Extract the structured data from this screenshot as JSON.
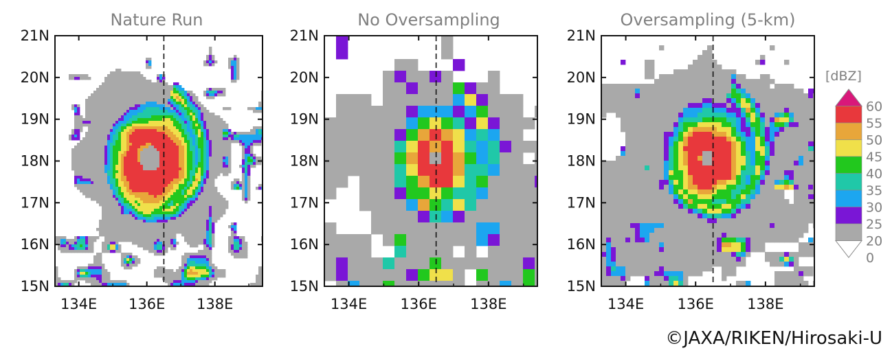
{
  "figure": {
    "credit": "©JAXA/RIKEN/Hirosaki-U"
  },
  "chart_data": [
    {
      "type": "heatmap",
      "title": "Nature Run",
      "x_ticks": [
        "134E",
        "136E",
        "138E"
      ],
      "y_ticks": [
        "21N",
        "20N",
        "19N",
        "18N",
        "17N",
        "16N",
        "15N"
      ],
      "xlim": [
        133.3,
        139.4
      ],
      "ylim": [
        15,
        21
      ],
      "reference_line_lon": 136.5,
      "resolution": "fine",
      "storm": {
        "center": [
          136.1,
          18.05
        ],
        "eye_radius_deg": 0.3,
        "max_dbz": 55
      }
    },
    {
      "type": "heatmap",
      "title": "No Oversampling",
      "x_ticks": [
        "134E",
        "136E",
        "138E"
      ],
      "y_ticks": [
        "21N",
        "20N",
        "19N",
        "18N",
        "17N",
        "16N",
        "15N"
      ],
      "xlim": [
        133.3,
        139.4
      ],
      "ylim": [
        15,
        21
      ],
      "reference_line_lon": 136.5,
      "resolution": "coarse",
      "storm": {
        "center": [
          136.5,
          18.1
        ],
        "eye_radius_deg": 0.15,
        "max_dbz": 55
      }
    },
    {
      "type": "heatmap",
      "title": "Oversampling (5-km)",
      "x_ticks": [
        "134E",
        "136E",
        "138E"
      ],
      "y_ticks": [
        "21N",
        "20N",
        "19N",
        "18N",
        "17N",
        "16N",
        "15N"
      ],
      "xlim": [
        133.3,
        139.4
      ],
      "ylim": [
        15,
        21
      ],
      "reference_line_lon": 136.5,
      "resolution": "medium",
      "storm": {
        "center": [
          136.35,
          18.1
        ],
        "eye_radius_deg": 0.18,
        "max_dbz": 55
      }
    }
  ],
  "colorbar": {
    "unit": "[dBZ]",
    "labels": [
      "60",
      "55",
      "50",
      "45",
      "40",
      "35",
      "30",
      "25",
      "20",
      "0"
    ],
    "colors": [
      "#d9187a",
      "#e8383c",
      "#e8a63a",
      "#f0e04a",
      "#22c81e",
      "#20c8a8",
      "#1ca6f0",
      "#7a16d6",
      "#a9a9a9"
    ]
  }
}
